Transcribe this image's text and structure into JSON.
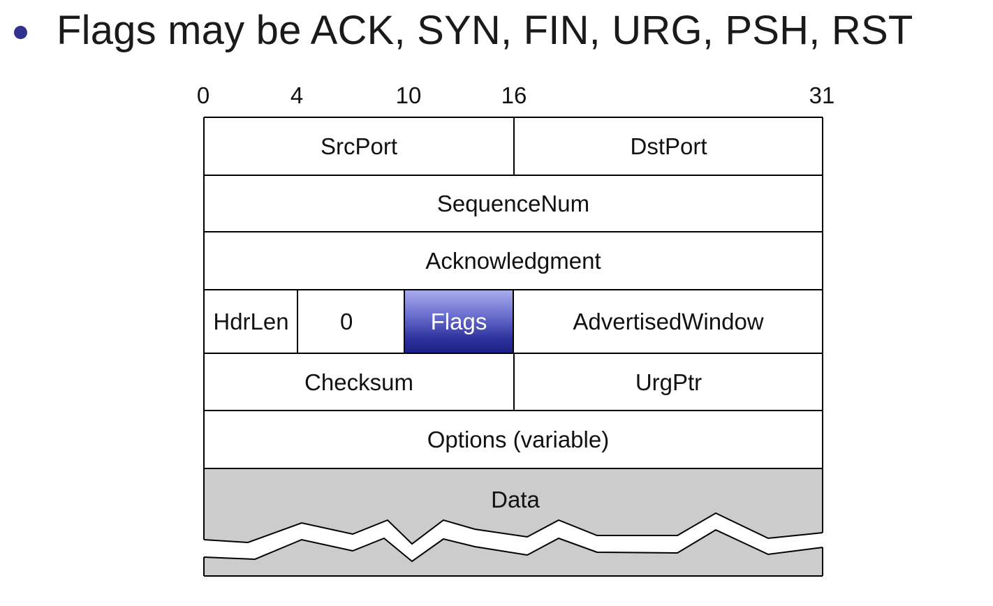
{
  "bullet": {
    "text": "Flags may be ACK, SYN, FIN, URG, PSH, RST",
    "dot_color": "#31318f"
  },
  "header": {
    "bit_ticks": [
      "0",
      "4",
      "10",
      "16",
      "31"
    ]
  },
  "fields": {
    "src_port": "SrcPort",
    "dst_port": "DstPort",
    "sequence_num": "SequenceNum",
    "acknowledgment": "Acknowledgment",
    "hdr_len": "HdrLen",
    "reserved": "0",
    "flags": "Flags",
    "advertised_window": "AdvertisedWindow",
    "checksum": "Checksum",
    "urg_ptr": "UrgPtr",
    "options": "Options (variable)",
    "data": "Data"
  },
  "colors": {
    "data_fill": "#cccccc",
    "flags_fill": "#2a2f9a"
  }
}
